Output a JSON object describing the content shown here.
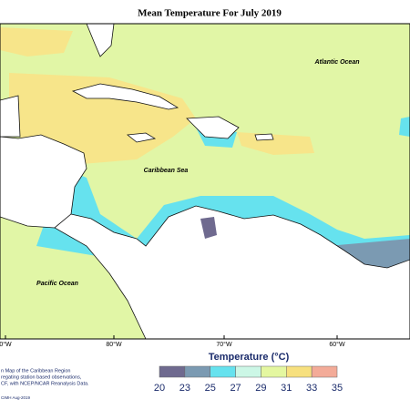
{
  "title": "Mean Temperature For July 2019",
  "labels": {
    "atlantic": "Atlantic Ocean",
    "caribbean": "Caribbean Sea",
    "pacific": "Pacific Ocean"
  },
  "longitudes": [
    "0°W",
    "80°W",
    "70°W",
    "60°W"
  ],
  "legend": {
    "title": "Temperature (°C)",
    "ticks": [
      20,
      23,
      25,
      27,
      29,
      31,
      33,
      35
    ],
    "colors": [
      "#6f6a8f",
      "#7b9ab2",
      "#66e2ee",
      "#ccf7e6",
      "#e4f7a0",
      "#f7e07e",
      "#f3ab98"
    ]
  },
  "footnote": [
    "n Map of the Caribbean Region",
    "regating station based observations,",
    "CF, with NCEP/NCAR Reanalysis Data.",
    "CIMH Aug-2019"
  ]
}
